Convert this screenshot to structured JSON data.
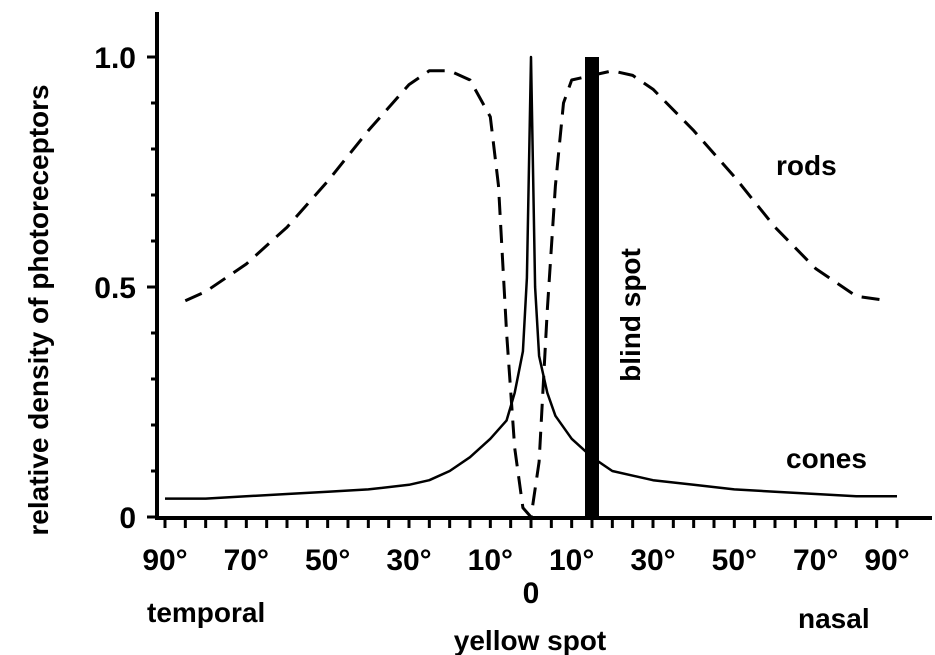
{
  "chart_data": {
    "type": "line",
    "ylabel": "relative density of photoreceptors",
    "ylim": [
      0,
      1.0
    ],
    "y_ticks": [
      {
        "value": 0,
        "label": "0"
      },
      {
        "value": 0.5,
        "label": "0.5"
      },
      {
        "value": 1.0,
        "label": "1.0"
      }
    ],
    "xlim": [
      -90,
      90
    ],
    "x_ticks": [
      {
        "value": -90,
        "label": "90°"
      },
      {
        "value": -70,
        "label": "70°"
      },
      {
        "value": -50,
        "label": "50°"
      },
      {
        "value": -30,
        "label": "30°"
      },
      {
        "value": -10,
        "label": "10°"
      },
      {
        "value": 0,
        "label": "0"
      },
      {
        "value": 10,
        "label": "10°"
      },
      {
        "value": 30,
        "label": "30°"
      },
      {
        "value": 50,
        "label": "50°"
      },
      {
        "value": 70,
        "label": "70°"
      },
      {
        "value": 90,
        "label": "90°"
      }
    ],
    "x_annotations": {
      "left": "temporal",
      "right": "nasal",
      "center": "yellow spot"
    },
    "series": [
      {
        "name": "rods",
        "style": "dashed",
        "x": [
          -85,
          -80,
          -70,
          -60,
          -50,
          -40,
          -30,
          -25,
          -20,
          -15,
          -10,
          -8,
          -6,
          -4,
          -2,
          0,
          2,
          4,
          6,
          8,
          10,
          15,
          20,
          25,
          30,
          40,
          50,
          60,
          70,
          80,
          88
        ],
        "y": [
          0.47,
          0.49,
          0.55,
          0.63,
          0.73,
          0.84,
          0.94,
          0.97,
          0.97,
          0.95,
          0.87,
          0.72,
          0.4,
          0.15,
          0.02,
          0.0,
          0.12,
          0.45,
          0.72,
          0.9,
          0.95,
          0.96,
          0.97,
          0.96,
          0.93,
          0.84,
          0.74,
          0.63,
          0.54,
          0.48,
          0.47
        ]
      },
      {
        "name": "cones",
        "style": "solid",
        "x": [
          -90,
          -80,
          -70,
          -60,
          -50,
          -40,
          -30,
          -25,
          -20,
          -15,
          -10,
          -6,
          -4,
          -2,
          -1,
          0,
          1,
          2,
          4,
          6,
          10,
          15,
          20,
          30,
          40,
          50,
          60,
          70,
          80,
          90
        ],
        "y": [
          0.04,
          0.04,
          0.045,
          0.05,
          0.055,
          0.06,
          0.07,
          0.08,
          0.1,
          0.13,
          0.17,
          0.21,
          0.27,
          0.36,
          0.52,
          1.0,
          0.5,
          0.35,
          0.27,
          0.22,
          0.17,
          0.13,
          0.1,
          0.08,
          0.07,
          0.06,
          0.055,
          0.05,
          0.045,
          0.045
        ]
      }
    ],
    "blind_spot": {
      "x": 15,
      "label": "blind spot"
    },
    "series_labels": {
      "rods": "rods",
      "cones": "cones"
    }
  }
}
